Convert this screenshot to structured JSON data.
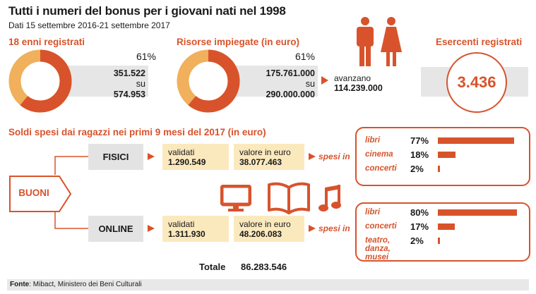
{
  "header": {
    "title": "Tutti i numeri del bonus per i giovani nati nel 1998",
    "subtitle": "Dati 15 settembre 2016-21 settembre 2017"
  },
  "registrati": {
    "heading": "18 enni registrati",
    "percent": "61%",
    "value": "351.522",
    "su": "su",
    "total": "574.953",
    "fraction": 0.61
  },
  "risorse": {
    "heading": "Risorse impiegate (in euro)",
    "percent": "61%",
    "value": "175.761.000",
    "su": "su",
    "total": "290.000.000",
    "avanzano_label": "avanzano",
    "avanzano_value": "114.239.000",
    "fraction": 0.61
  },
  "esercenti": {
    "heading": "Esercenti registrati",
    "value": "3.436"
  },
  "soldi": {
    "heading": "Soldi spesi dai ragazzi nei primi 9 mesi del 2017 (in euro)",
    "buoni_label": "BUONI",
    "validati_label": "validati",
    "valore_label": "valore in euro",
    "spesi_label": "spesi in",
    "fisici": {
      "label": "FISICI",
      "validati": "1.290.549",
      "valore": "38.077.463",
      "categories": [
        {
          "name": "libri",
          "pct": "77%",
          "value": 77
        },
        {
          "name": "cinema",
          "pct": "18%",
          "value": 18
        },
        {
          "name": "concerti",
          "pct": "2%",
          "value": 2
        }
      ]
    },
    "online": {
      "label": "ONLINE",
      "validati": "1.311.930",
      "valore": "48.206.083",
      "categories": [
        {
          "name": "libri",
          "pct": "80%",
          "value": 80
        },
        {
          "name": "concerti",
          "pct": "17%",
          "value": 17
        },
        {
          "name": "teatro,\ndanza,\nmusei",
          "pct": "2%",
          "value": 2
        }
      ]
    },
    "totale_label": "Totale",
    "totale_value": "86.283.546"
  },
  "footer": {
    "fonte_label": "Fonte",
    "fonte_text": ": Mibact, Ministero dei Beni Culturali"
  },
  "colors": {
    "accent": "#d8532b",
    "donut_light": "#f0b05c",
    "cream": "#fbe9be",
    "grey": "#e6e6e6"
  },
  "icons": [
    "male-person-icon",
    "female-person-icon",
    "monitor-icon",
    "open-book-icon",
    "music-note-icon"
  ]
}
